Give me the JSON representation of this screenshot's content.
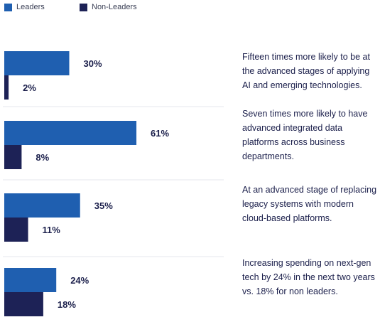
{
  "legend": [
    {
      "label": "Leaders",
      "color": "#1f5fb0"
    },
    {
      "label": "Non-Leaders",
      "color": "#1d2256"
    }
  ],
  "chart_data": {
    "type": "bar",
    "orientation": "horizontal",
    "categories": [
      "Fifteen times more likely to be at the advanced stages of applying AI and emerging technologies.",
      "Seven times more likely to have advanced integrated data platforms across business departments.",
      "At an advanced stage of replacing legacy systems with modern cloud-based platforms.",
      "Increasing spending on next-gen tech by 24% in the next two years vs. 18%  for non leaders."
    ],
    "series": [
      {
        "name": "Leaders",
        "color": "#1f5fb0",
        "values": [
          30,
          61,
          35,
          24
        ],
        "labels": [
          "30%",
          "61%",
          "35%",
          "24%"
        ]
      },
      {
        "name": "Non-Leaders",
        "color": "#1d2256",
        "values": [
          2,
          8,
          11,
          18
        ],
        "labels": [
          "2%",
          "8%",
          "11%",
          "18%"
        ]
      }
    ],
    "xlim": [
      0,
      100
    ],
    "grid": false,
    "legend_position": "top-left"
  }
}
